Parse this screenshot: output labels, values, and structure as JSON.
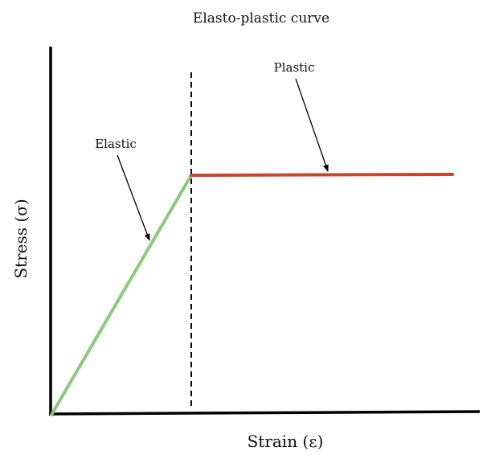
{
  "diagram": {
    "title": "Elasto-plastic curve",
    "x_axis_label": "Strain (ε)",
    "y_axis_label": "Stress (σ)",
    "annotations": {
      "elastic": "Elastic",
      "plastic": "Plastic"
    },
    "colors": {
      "axes": "#000000",
      "elastic_line": "#8cc97a",
      "plastic_line": "#c8452f",
      "divider": "#000000",
      "text": "#111111"
    }
  }
}
